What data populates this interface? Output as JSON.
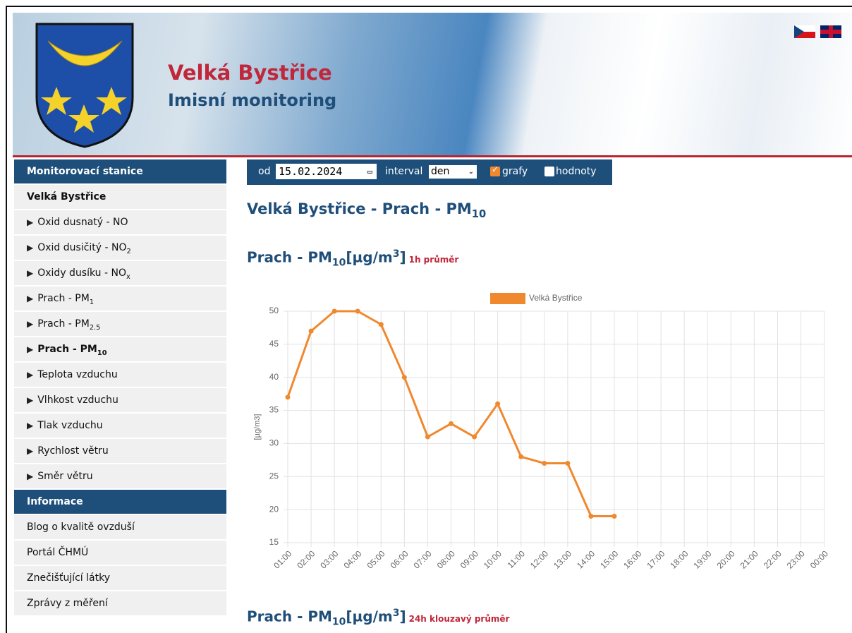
{
  "header": {
    "title": "Velká Bystřice",
    "subtitle": "Imisní monitoring"
  },
  "sidebar": {
    "section1": "Monitorovací stanice",
    "station": "Velká Bystřice",
    "items": [
      {
        "text": "Oxid dusnatý - NO"
      },
      {
        "text": "Oxid dusičitý - NO",
        "sub": "2"
      },
      {
        "text": "Oxidy dusíku - NO",
        "sub": "x"
      },
      {
        "text": "Prach - PM",
        "sub": "1"
      },
      {
        "text": "Prach - PM",
        "sub": "2.5"
      },
      {
        "text": "Prach - PM",
        "sub": "10",
        "active": true
      },
      {
        "text": "Teplota vzduchu"
      },
      {
        "text": "Vlhkost vzduchu"
      },
      {
        "text": "Tlak vzduchu"
      },
      {
        "text": "Rychlost větru"
      },
      {
        "text": "Směr větru"
      }
    ],
    "section2": "Informace",
    "links": [
      "Blog o kvalitě ovzduší",
      "Portál ČHMÚ",
      "Znečišťující látky",
      "Zprávy z měření"
    ]
  },
  "toolbar": {
    "from_label": "od",
    "date": "15.02.2024",
    "interval_label": "interval",
    "interval": "den",
    "charts_label": "grafy",
    "charts_checked": true,
    "values_label": "hodnoty",
    "values_checked": false
  },
  "page_title": {
    "text": "Velká Bystřice - Prach - PM",
    "sub": "10"
  },
  "sections": [
    {
      "text": "Prach - PM",
      "sub": "10",
      "unit": "[µg/m",
      "sup": "3",
      "unit_end": "]",
      "note": "1h průměr"
    },
    {
      "text": "Prach - PM",
      "sub": "10",
      "unit": "[µg/m",
      "sup": "3",
      "unit_end": "]",
      "note": "24h klouzavý průměr"
    }
  ],
  "chart_data": {
    "type": "line",
    "y_label": "[µg/m3]",
    "categories": [
      "01:00",
      "02:00",
      "03:00",
      "04:00",
      "05:00",
      "06:00",
      "07:00",
      "08:00",
      "09:00",
      "10:00",
      "11:00",
      "12:00",
      "13:00",
      "14:00",
      "15:00",
      "16:00",
      "17:00",
      "18:00",
      "19:00",
      "20:00",
      "21:00",
      "22:00",
      "23:00",
      "00:00"
    ],
    "series": [
      {
        "name": "Velká Bystřice",
        "color": "#f0882e",
        "values": [
          37,
          47,
          50,
          50,
          48,
          40,
          31,
          33,
          31,
          36,
          28,
          27,
          27,
          19,
          19,
          null,
          null,
          null,
          null,
          null,
          null,
          null,
          null,
          null
        ]
      }
    ],
    "ylim": [
      15,
      50
    ],
    "yticks": [
      15,
      20,
      25,
      30,
      35,
      40,
      45,
      50
    ],
    "grid": true
  }
}
